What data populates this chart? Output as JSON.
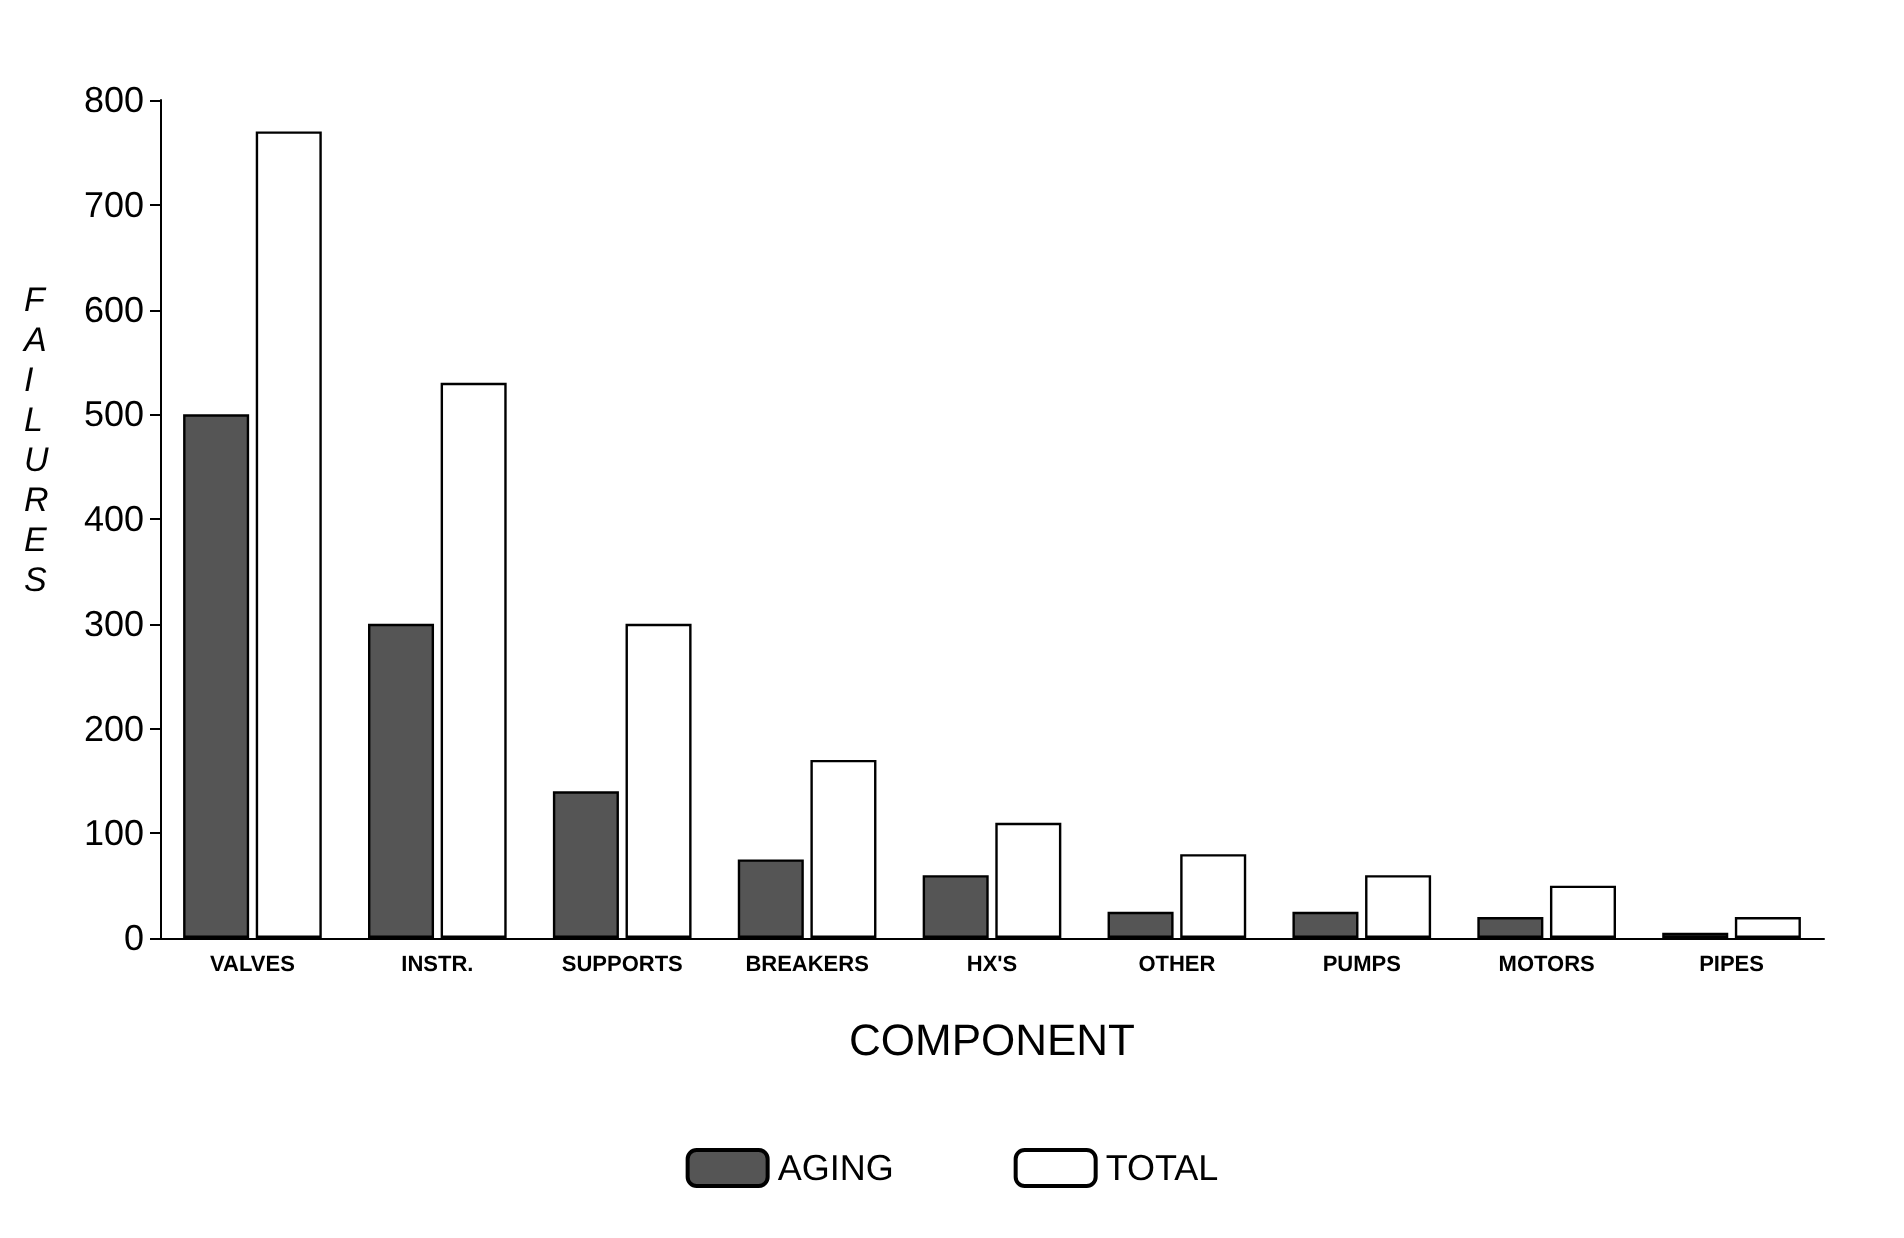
{
  "chart_data": {
    "type": "bar",
    "xlabel": "COMPONENT",
    "ylabel": "FAILURES",
    "categories": [
      "VALVES",
      "INSTR.",
      "SUPPORTS",
      "BREAKERS",
      "HX'S",
      "OTHER",
      "PUMPS",
      "MOTORS",
      "PIPES"
    ],
    "series": [
      {
        "name": "AGING",
        "color": "#555555",
        "values": [
          500,
          300,
          140,
          75,
          60,
          25,
          25,
          20,
          5
        ]
      },
      {
        "name": "TOTAL",
        "color": "#ffffff",
        "values": [
          770,
          530,
          300,
          170,
          110,
          80,
          60,
          50,
          20
        ]
      }
    ],
    "ylim": [
      0,
      800
    ],
    "yticks": [
      0,
      100,
      200,
      300,
      400,
      500,
      600,
      700,
      800
    ],
    "legend": "bottom",
    "grid": false
  }
}
